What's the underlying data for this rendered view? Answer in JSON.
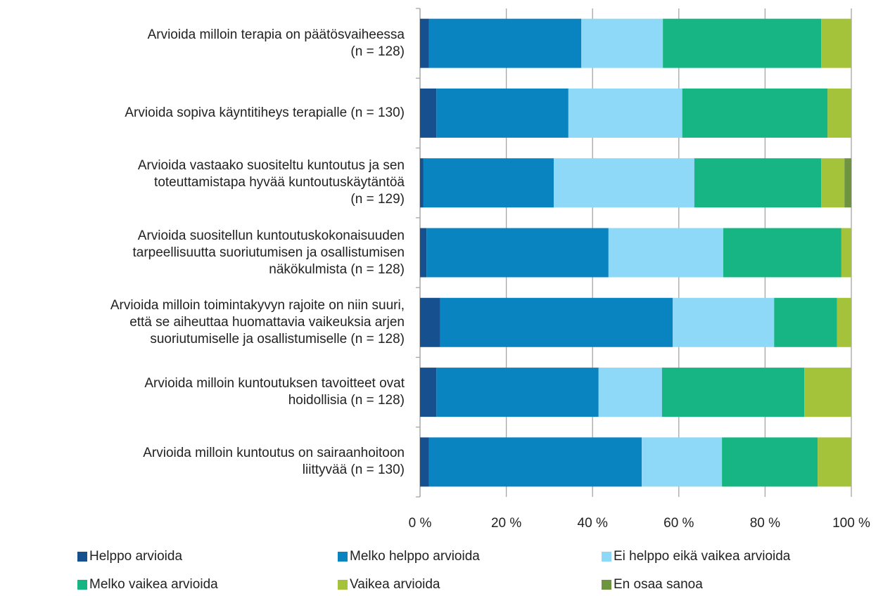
{
  "chart_data": {
    "type": "stacked_barh",
    "categories": [
      "Arvioida milloin terapia on päätösvaiheessa\n(n = 128)",
      "Arvioida sopiva käyntitiheys terapialle (n = 130)",
      "Arvioida vastaako suositeltu kuntoutus ja sen\ntoteuttamistapa hyvää kuntoutuskäytäntöä\n(n = 129)",
      "Arvioida suositellun kuntoutuskokonaisuuden\ntarpeellisuutta suoriutumisen ja osallistumisen\nnäkökulmista (n = 128)",
      "Arvioida milloin toimintakyvyn rajoite on niin suuri,\nettä se aiheuttaa huomattavia vaikeuksia arjen\nsuoriutumiselle ja osallistumiselle (n = 128)",
      "Arvioida milloin kuntoutuksen tavoitteet ovat\nhoidollisia (n = 128)",
      "Arvioida milloin kuntoutus on  sairaanhoitoon\nliittyvää (n = 130)"
    ],
    "series": [
      {
        "name": "Helppo arvioida",
        "color": "#17508f",
        "values": [
          2.1,
          3.8,
          0.8,
          1.5,
          4.7,
          3.8,
          2.1
        ]
      },
      {
        "name": "Melko helppo arvioida",
        "color": "#0a84c1",
        "values": [
          35.3,
          30.6,
          30.2,
          42.2,
          53.9,
          37.6,
          49.3
        ]
      },
      {
        "name": "Ei helppo eikä vaikea arvioida",
        "color": "#8ed8f8",
        "values": [
          18.9,
          26.4,
          32.6,
          26.6,
          23.5,
          14.7,
          18.6
        ]
      },
      {
        "name": "Melko vaikea arvioida",
        "color": "#17b584",
        "values": [
          36.7,
          33.7,
          29.4,
          27.4,
          14.6,
          33.0,
          22.2
        ]
      },
      {
        "name": "Vaikea arvioida",
        "color": "#a5c23b",
        "values": [
          7.0,
          5.5,
          5.4,
          2.3,
          3.3,
          10.9,
          7.8
        ]
      },
      {
        "name": "En osaa sanoa",
        "color": "#6f9440",
        "values": [
          0,
          0,
          1.6,
          0,
          0,
          0,
          0
        ]
      }
    ],
    "xlim": [
      0,
      100
    ],
    "xticks": [
      {
        "value": 0,
        "label": "0 %"
      },
      {
        "value": 20,
        "label": "20 %"
      },
      {
        "value": 40,
        "label": "40 %"
      },
      {
        "value": 60,
        "label": "60 %"
      },
      {
        "value": 80,
        "label": "80 %"
      },
      {
        "value": 100,
        "label": "100 %"
      }
    ],
    "grid": true,
    "legend": "bottom"
  }
}
